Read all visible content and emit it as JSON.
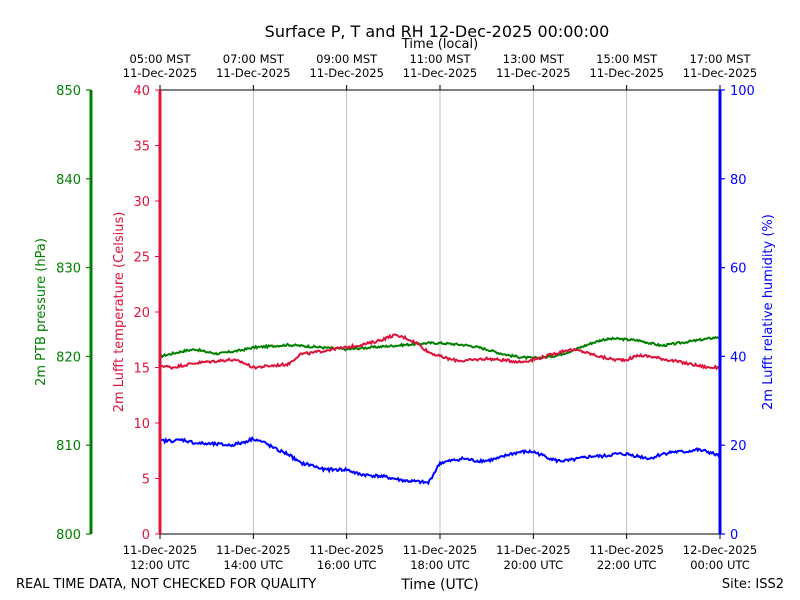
{
  "chart_data": {
    "type": "line",
    "title": "Surface P, T and RH 12-Dec-2025 00:00:00",
    "top_xlabel": "Time (local)",
    "xlabel": "Time (UTC)",
    "footer_left": "REAL TIME DATA, NOT CHECKED FOR QUALITY",
    "footer_right": "Site: ISS2",
    "x_range_hours_utc": [
      12,
      24
    ],
    "bottom_ticks": [
      {
        "date": "11-Dec-2025",
        "time": "12:00 UTC"
      },
      {
        "date": "11-Dec-2025",
        "time": "14:00 UTC"
      },
      {
        "date": "11-Dec-2025",
        "time": "16:00 UTC"
      },
      {
        "date": "11-Dec-2025",
        "time": "18:00 UTC"
      },
      {
        "date": "11-Dec-2025",
        "time": "20:00 UTC"
      },
      {
        "date": "11-Dec-2025",
        "time": "22:00 UTC"
      },
      {
        "date": "12-Dec-2025",
        "time": "00:00 UTC"
      }
    ],
    "top_ticks": [
      {
        "time": "05:00 MST",
        "date": "11-Dec-2025"
      },
      {
        "time": "07:00 MST",
        "date": "11-Dec-2025"
      },
      {
        "time": "09:00 MST",
        "date": "11-Dec-2025"
      },
      {
        "time": "11:00 MST",
        "date": "11-Dec-2025"
      },
      {
        "time": "13:00 MST",
        "date": "11-Dec-2025"
      },
      {
        "time": "15:00 MST",
        "date": "11-Dec-2025"
      },
      {
        "time": "17:00 MST",
        "date": "11-Dec-2025"
      }
    ],
    "axes": {
      "pressure": {
        "label": "2m PTB pressure (hPa)",
        "ylim": [
          800,
          850
        ],
        "ticks": [
          800,
          810,
          820,
          830,
          840,
          850
        ],
        "color": "#008000"
      },
      "temperature": {
        "label": "2m Lufft temperature (Celsius)",
        "ylim": [
          0,
          40
        ],
        "ticks": [
          0,
          5,
          10,
          15,
          20,
          25,
          30,
          35,
          40
        ],
        "color": "#dc143c"
      },
      "humidity": {
        "label": "2m Lufft relative humidity (%)",
        "ylim": [
          0,
          100
        ],
        "ticks": [
          0,
          20,
          40,
          60,
          80,
          100
        ],
        "color": "#0000ff"
      }
    },
    "grid": "vertical",
    "series": [
      {
        "name": "2m PTB pressure (hPa)",
        "axis": "pressure",
        "color": "#008000",
        "x": [
          12.0,
          12.25,
          12.5,
          12.75,
          13.0,
          13.25,
          13.5,
          13.75,
          14.0,
          14.25,
          14.5,
          14.75,
          15.0,
          15.25,
          15.5,
          15.75,
          16.0,
          16.25,
          16.5,
          16.75,
          17.0,
          17.25,
          17.5,
          17.75,
          18.0,
          18.25,
          18.5,
          18.75,
          19.0,
          19.25,
          19.5,
          19.75,
          20.0,
          20.25,
          20.5,
          20.75,
          21.0,
          21.25,
          21.5,
          21.75,
          22.0,
          22.25,
          22.5,
          22.75,
          23.0,
          23.25,
          23.5,
          23.75,
          24.0
        ],
        "values": [
          820.0,
          820.3,
          820.6,
          820.8,
          820.5,
          820.3,
          820.5,
          820.7,
          821.0,
          821.1,
          821.2,
          821.3,
          821.2,
          821.1,
          821.0,
          820.9,
          820.8,
          820.9,
          821.0,
          821.1,
          821.2,
          821.3,
          821.4,
          821.5,
          821.5,
          821.4,
          821.3,
          821.1,
          820.8,
          820.4,
          820.1,
          819.9,
          819.8,
          819.9,
          820.1,
          820.5,
          821.0,
          821.5,
          821.9,
          822.0,
          821.9,
          821.8,
          821.5,
          821.2,
          821.4,
          821.6,
          821.8,
          822.0,
          822.2
        ]
      },
      {
        "name": "2m Lufft temperature (Celsius)",
        "axis": "temperature",
        "color": "#dc143c",
        "x": [
          12.0,
          12.25,
          12.5,
          12.75,
          13.0,
          13.25,
          13.5,
          13.75,
          14.0,
          14.25,
          14.5,
          14.75,
          15.0,
          15.25,
          15.5,
          15.75,
          16.0,
          16.25,
          16.5,
          16.75,
          17.0,
          17.25,
          17.5,
          17.75,
          18.0,
          18.25,
          18.5,
          18.75,
          19.0,
          19.25,
          19.5,
          19.75,
          20.0,
          20.25,
          20.5,
          20.75,
          21.0,
          21.25,
          21.5,
          21.75,
          22.0,
          22.25,
          22.5,
          22.75,
          23.0,
          23.25,
          23.5,
          23.75,
          24.0
        ],
        "values": [
          15.2,
          15.0,
          15.2,
          15.4,
          15.5,
          15.6,
          15.7,
          15.5,
          15.0,
          15.1,
          15.2,
          15.3,
          16.2,
          16.3,
          16.5,
          16.7,
          16.8,
          17.0,
          17.2,
          17.5,
          17.9,
          17.7,
          17.2,
          16.4,
          16.0,
          15.7,
          15.6,
          15.7,
          15.8,
          15.7,
          15.6,
          15.5,
          15.7,
          16.0,
          16.3,
          16.6,
          16.5,
          16.2,
          15.9,
          15.7,
          15.7,
          16.1,
          16.0,
          15.8,
          15.6,
          15.4,
          15.2,
          15.0,
          15.0
        ]
      },
      {
        "name": "2m Lufft relative humidity (%)",
        "axis": "humidity",
        "color": "#0000ff",
        "x": [
          12.0,
          12.25,
          12.5,
          12.75,
          13.0,
          13.25,
          13.5,
          13.75,
          14.0,
          14.25,
          14.5,
          14.75,
          15.0,
          15.25,
          15.5,
          15.75,
          16.0,
          16.25,
          16.5,
          16.75,
          17.0,
          17.25,
          17.5,
          17.75,
          18.0,
          18.25,
          18.5,
          18.75,
          19.0,
          19.25,
          19.5,
          19.75,
          20.0,
          20.25,
          20.5,
          20.75,
          21.0,
          21.25,
          21.5,
          21.75,
          22.0,
          22.25,
          22.5,
          22.75,
          23.0,
          23.25,
          23.5,
          23.75,
          24.0
        ],
        "values": [
          21.0,
          21.0,
          21.2,
          20.5,
          20.3,
          20.2,
          20.0,
          20.5,
          21.5,
          20.5,
          19.0,
          18.0,
          16.0,
          15.5,
          14.5,
          14.5,
          14.5,
          13.5,
          13.2,
          13.0,
          12.5,
          12.0,
          11.8,
          11.5,
          16.0,
          16.5,
          17.0,
          16.5,
          16.5,
          17.0,
          18.0,
          18.5,
          18.5,
          17.5,
          16.5,
          16.5,
          17.0,
          17.5,
          17.5,
          18.0,
          18.0,
          17.5,
          17.0,
          18.0,
          18.5,
          18.5,
          19.0,
          18.5,
          17.5
        ]
      }
    ]
  }
}
